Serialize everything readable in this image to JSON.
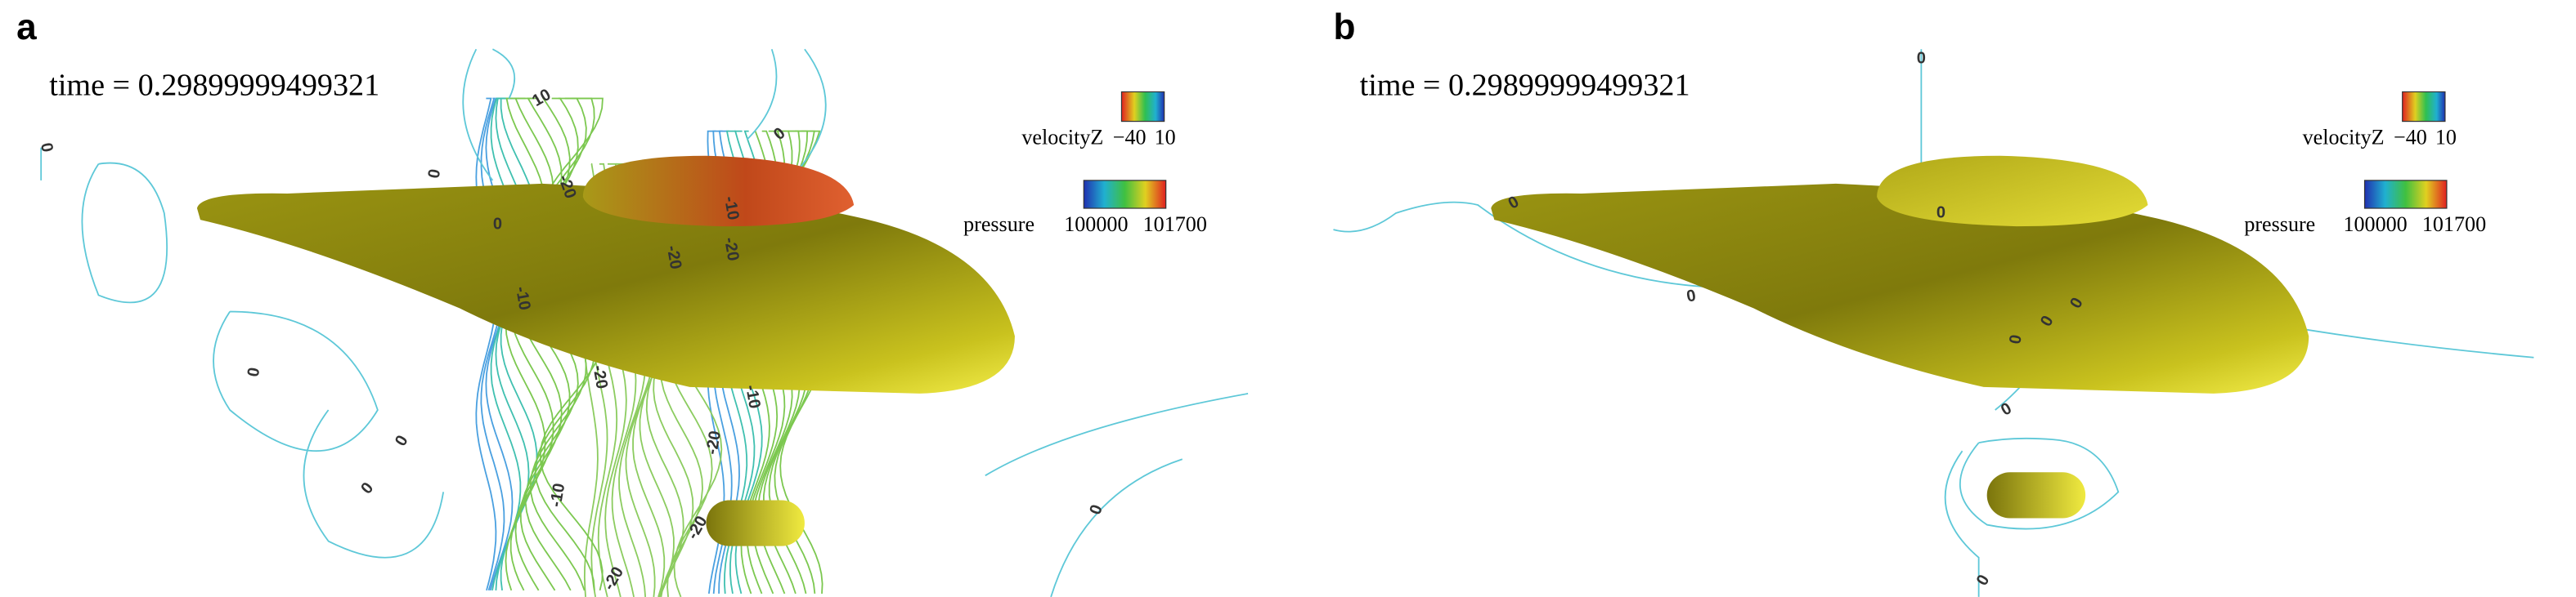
{
  "panels": [
    {
      "label": "a",
      "time": "time = 0.29899999499321",
      "velocity_legend": {
        "title": "velocityZ",
        "min": "−40",
        "max": "10"
      },
      "pressure_legend": {
        "title": "pressure",
        "min": "100000",
        "max": "101700"
      },
      "contour_labels": [
        "10",
        "0",
        "0",
        "-20",
        "0",
        "-10",
        "-20",
        "-20",
        "-10",
        "-20",
        "-10",
        "0",
        "0",
        "0",
        "-20",
        "-20",
        "-10",
        "0",
        "-20",
        "0"
      ]
    },
    {
      "label": "b",
      "time": "time = 0.29899999499321",
      "velocity_legend": {
        "title": "velocityZ",
        "min": "−40",
        "max": "10"
      },
      "pressure_legend": {
        "title": "pressure",
        "min": "100000",
        "max": "101700"
      },
      "contour_labels": [
        "0",
        "0",
        "0",
        "0",
        "0",
        "0",
        "0",
        "0",
        "0"
      ]
    }
  ]
}
